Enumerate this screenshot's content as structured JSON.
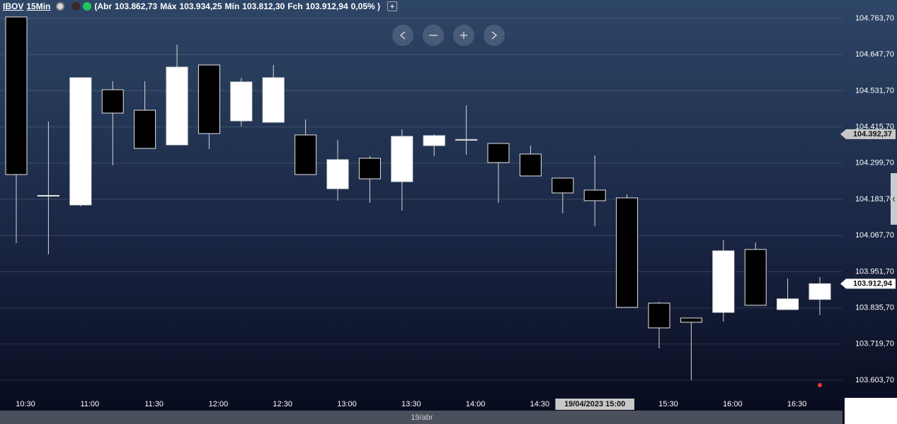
{
  "header": {
    "symbol": "IBOV",
    "interval": "15Min",
    "stats": [
      {
        "label": "(Abr",
        "value": "103.862,73"
      },
      {
        "label": "Máx",
        "value": "103.934,25"
      },
      {
        "label": "Mín",
        "value": "103.812,30"
      },
      {
        "label": "Fch",
        "value": "103.912,94"
      }
    ],
    "change": "0,05% )"
  },
  "chart_data": {
    "type": "candlestick",
    "categories": [
      "10:30",
      null,
      "11:00",
      null,
      "11:30",
      null,
      "12:00",
      null,
      "12:30",
      null,
      "13:00",
      null,
      "13:30",
      null,
      "14:00",
      null,
      "14:30",
      null,
      "19/04/2023 15:00",
      null,
      "15:30",
      null,
      "16:00",
      null,
      "16:30",
      null
    ],
    "series": [
      {
        "up_color": "#ffffff",
        "down_color": "#000000",
        "open": [
          104768.2,
          104196.0,
          104165.6,
          104534.9,
          104469.2,
          104358.2,
          104614.2,
          104435.2,
          104430.7,
          104389.9,
          104217.7,
          104315.1,
          104240.3,
          104355.9,
          104375.5,
          104362.7,
          104328.7,
          104251.7,
          104213.2,
          104188.2,
          103850.7,
          103803.1,
          103821.2,
          104022.8,
          103830.3,
          103862.73
        ],
        "high": [
          104768.2,
          104432.9,
          104573.4,
          104562.1,
          104562.1,
          104679.9,
          104614.2,
          104573.4,
          104614.2,
          104439.7,
          104374.0,
          104321.9,
          104408.0,
          104392.1,
          104485.0,
          104362.7,
          104355.9,
          104251.7,
          104324.2,
          104199.6,
          103855.2,
          103803.1,
          104052.3,
          104045.5,
          103930.0,
          103934.25
        ],
        "low": [
          104043.2,
          104007.0,
          104161.1,
          104292.5,
          104346.8,
          104358.2,
          104344.6,
          104417.1,
          104430.7,
          104263.0,
          104179.2,
          104172.4,
          104147.5,
          104321.9,
          104326.4,
          104172.4,
          104258.5,
          104138.4,
          104097.6,
          103837.1,
          103705.7,
          103603.7,
          103791.8,
          103843.9,
          103830.3,
          103812.3
        ],
        "close": [
          104263.0,
          104194.0,
          104573.4,
          104460.1,
          104346.8,
          104607.4,
          104394.4,
          104559.8,
          104573.4,
          104263.0,
          104310.6,
          104249.4,
          104385.3,
          104387.6,
          104373.0,
          104301.5,
          104258.5,
          104204.1,
          104179.2,
          103837.1,
          103771.4,
          103789.5,
          104018.3,
          103843.9,
          103864.3,
          103912.94
        ]
      }
    ],
    "ylim": [
      103565.2,
      104822.6
    ],
    "yticks": [
      {
        "value": 104763.7,
        "label": "104.763,70"
      },
      {
        "value": 104647.7,
        "label": "104.647,70"
      },
      {
        "value": 104531.7,
        "label": "104.531,70"
      },
      {
        "value": 104415.7,
        "label": "104.415,70"
      },
      {
        "value": 104299.7,
        "label": "104.299,70"
      },
      {
        "value": 104183.7,
        "label": "104.183,70"
      },
      {
        "value": 104067.7,
        "label": "104.067,70"
      },
      {
        "value": 103951.7,
        "label": "103.951,70"
      },
      {
        "value": 103835.7,
        "label": "103.835,70"
      },
      {
        "value": 103719.7,
        "label": "103.719,70"
      },
      {
        "value": 103603.7,
        "label": "103.603,70"
      }
    ],
    "grid": true,
    "price_markers": [
      {
        "value": 104392.37,
        "label": "104.392,37",
        "color": "#c8c8c8"
      },
      {
        "value": 103912.94,
        "label": "103.912,94",
        "color": "#ffffff"
      }
    ],
    "date_label": "19/abr"
  }
}
